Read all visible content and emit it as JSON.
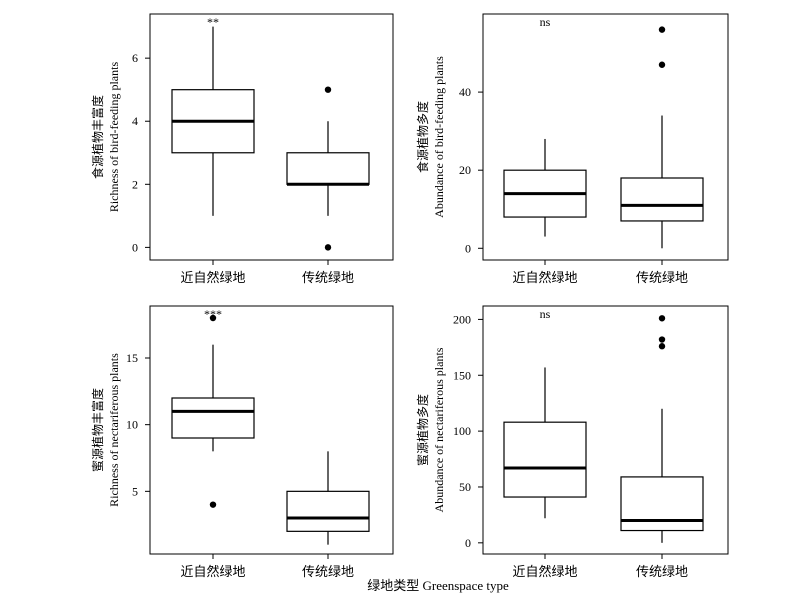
{
  "xlabel": "绿地类型 Greenspace type",
  "chart_data": [
    {
      "type": "box",
      "categories": [
        "近自然绿地",
        "传统绿地"
      ],
      "ylabel_cn": "食源植物丰富度",
      "ylabel_en": "Richness of bird-feeding plants",
      "yticks": [
        0,
        2,
        4,
        6
      ],
      "ylim": [
        -0.4,
        7.4
      ],
      "significance": "**",
      "boxes": [
        {
          "whisker_low": 1,
          "q1": 3,
          "median": 4,
          "q3": 5,
          "whisker_high": 7,
          "outliers": []
        },
        {
          "whisker_low": 1,
          "q1": 2,
          "median": 2,
          "q3": 3,
          "whisker_high": 4,
          "outliers": [
            5,
            0
          ]
        }
      ]
    },
    {
      "type": "box",
      "categories": [
        "近自然绿地",
        "传统绿地"
      ],
      "ylabel_cn": "食源植物多度",
      "ylabel_en": "Abundance of bird-feeding plants",
      "yticks": [
        0,
        20,
        40
      ],
      "ylim": [
        -3,
        60
      ],
      "significance": "ns",
      "boxes": [
        {
          "whisker_low": 3,
          "q1": 8,
          "median": 14,
          "q3": 20,
          "whisker_high": 28,
          "outliers": []
        },
        {
          "whisker_low": 0,
          "q1": 7,
          "median": 11,
          "q3": 18,
          "whisker_high": 34,
          "outliers": [
            47,
            56
          ]
        }
      ]
    },
    {
      "type": "box",
      "categories": [
        "近自然绿地",
        "传统绿地"
      ],
      "ylabel_cn": "蜜源植物丰富度",
      "ylabel_en": "Richness of nectariferous plants",
      "yticks": [
        5,
        10,
        15
      ],
      "ylim": [
        0.3,
        18.9
      ],
      "significance": "***",
      "boxes": [
        {
          "whisker_low": 8,
          "q1": 9,
          "median": 11,
          "q3": 12,
          "whisker_high": 16,
          "outliers": [
            18,
            4
          ]
        },
        {
          "whisker_low": 1,
          "q1": 2,
          "median": 3,
          "q3": 5,
          "whisker_high": 8,
          "outliers": []
        }
      ]
    },
    {
      "type": "box",
      "categories": [
        "近自然绿地",
        "传统绿地"
      ],
      "ylabel_cn": "蜜源植物多度",
      "ylabel_en": "Abundance of nectariferous plants",
      "yticks": [
        0,
        50,
        100,
        150,
        200
      ],
      "ylim": [
        -10,
        212
      ],
      "significance": "ns",
      "boxes": [
        {
          "whisker_low": 22,
          "q1": 41,
          "median": 67,
          "q3": 108,
          "whisker_high": 157,
          "outliers": []
        },
        {
          "whisker_low": 0,
          "q1": 11,
          "median": 20,
          "q3": 59,
          "whisker_high": 120,
          "outliers": [
            176,
            182,
            201
          ]
        }
      ]
    }
  ]
}
